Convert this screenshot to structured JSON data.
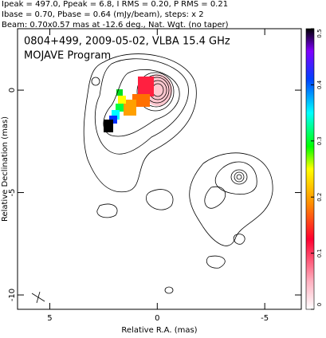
{
  "header": [
    "Ipeak = 497.0, Ppeak = 6.8, I RMS = 0.20, P RMS = 0.21",
    "Ibase = 0.70, Pbase = 0.64 (mJy/beam), steps: x 2",
    "Beam: 0.70x0.57 mas at -12.6 deg., Nat. Wgt. (no taper)"
  ],
  "chart_data": {
    "type": "contour",
    "title": "0804+499, 2009-05-02, VLBA 15.4 GHz",
    "subtitle": "MOJAVE Program",
    "xlabel": "Relative R.A. (mas)",
    "ylabel": "Relative Declination (mas)",
    "xlim": [
      6.5,
      -6.7
    ],
    "ylim": [
      -10.7,
      3
    ],
    "xticks": [
      5,
      0,
      -5
    ],
    "yticks": [
      0,
      -5,
      -10
    ],
    "colorbar": {
      "lim": [
        0,
        0.5
      ],
      "ticks": [
        0,
        0.1,
        0.2,
        0.3,
        0.4,
        0.5
      ]
    }
  }
}
